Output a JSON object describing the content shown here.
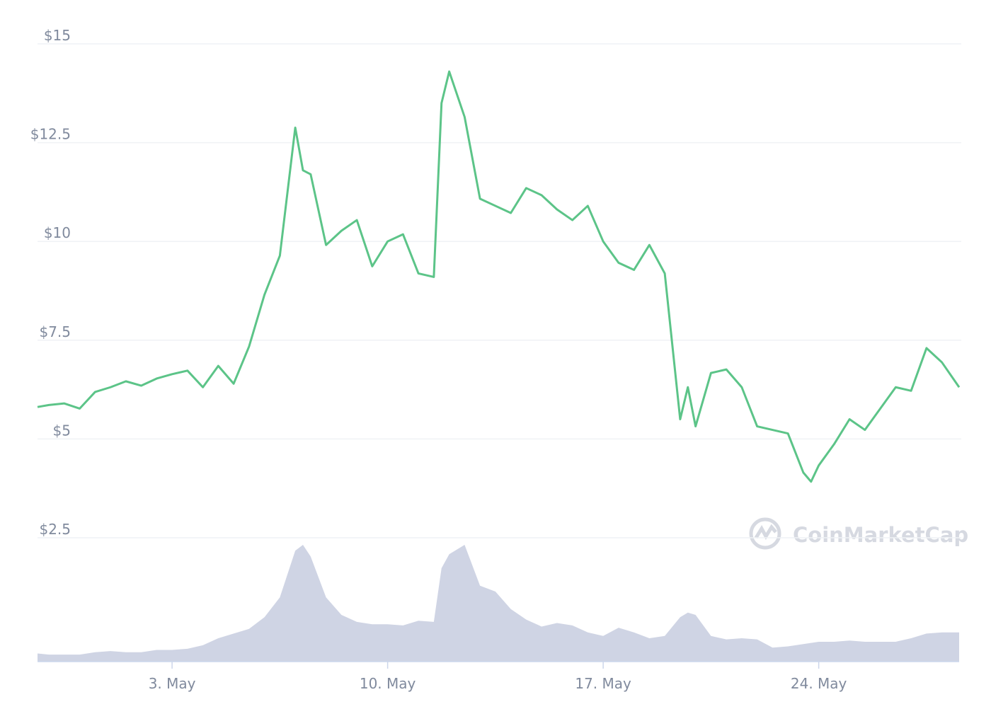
{
  "chart_data": {
    "type": "line",
    "watermark": "CoinMarketCap",
    "x": [
      -1.37,
      -1,
      -0.5,
      0,
      0.5,
      1,
      1.5,
      2,
      2.5,
      3,
      3.5,
      4,
      4.5,
      5,
      5.5,
      6,
      6.5,
      7,
      7.25,
      7.5,
      8,
      8.5,
      9,
      9.5,
      10,
      10.5,
      11,
      11.5,
      11.75,
      12,
      12.5,
      13,
      13.5,
      14,
      14.5,
      15,
      15.5,
      16,
      16.5,
      17,
      17.5,
      18,
      18.5,
      19,
      19.5,
      19.75,
      20,
      20.5,
      21,
      21.5,
      22,
      22.5,
      23,
      23.5,
      23.75,
      24,
      24.5,
      25,
      25.5,
      26,
      26.5,
      27,
      27.5,
      28,
      28.56
    ],
    "series": [
      {
        "color": "#5cc488",
        "values": [
          5.81,
          5.86,
          5.9,
          5.77,
          6.19,
          6.31,
          6.46,
          6.35,
          6.53,
          6.64,
          6.73,
          6.31,
          6.85,
          6.4,
          7.34,
          8.65,
          9.64,
          12.88,
          11.8,
          11.7,
          9.91,
          10.27,
          10.54,
          9.37,
          10.0,
          10.18,
          9.19,
          9.1,
          13.5,
          14.3,
          13.15,
          11.08,
          10.9,
          10.72,
          11.35,
          11.17,
          10.81,
          10.54,
          10.9,
          10.0,
          9.46,
          9.28,
          9.91,
          9.19,
          5.5,
          6.31,
          5.32,
          6.67,
          6.76,
          6.31,
          5.32,
          5.23,
          5.14,
          4.15,
          3.92,
          4.33,
          4.87,
          5.5,
          5.23,
          5.77,
          6.31,
          6.22,
          7.3,
          6.94,
          6.31
        ]
      },
      {
        "color": "#cfd4e4",
        "axis": "y2",
        "values": [
          7,
          6,
          6,
          6,
          8,
          9,
          8,
          8,
          10,
          10,
          11,
          14,
          20,
          24,
          28,
          38,
          55,
          95,
          100,
          90,
          55,
          40,
          34,
          32,
          32,
          31,
          35,
          34,
          80,
          92,
          100,
          65,
          60,
          45,
          36,
          30,
          33,
          31,
          25,
          22,
          29,
          25,
          20,
          22,
          38,
          42,
          40,
          22,
          19,
          20,
          19,
          12,
          13,
          15,
          16,
          17,
          17,
          18,
          17,
          17,
          17,
          20,
          24,
          25,
          25
        ]
      }
    ],
    "xlim": [
      -1.37,
      28.56
    ],
    "xticks": [
      {
        "value": 3,
        "label": "3. May"
      },
      {
        "value": 10,
        "label": "10. May"
      },
      {
        "value": 17,
        "label": "17. May"
      },
      {
        "value": 24,
        "label": "24. May"
      }
    ],
    "ylim": [
      2.5,
      15
    ],
    "yticks": [
      {
        "value": 2.5,
        "label": "$2.5"
      },
      {
        "value": 5,
        "label": "$5"
      },
      {
        "value": 7.5,
        "label": "$7.5"
      },
      {
        "value": 10,
        "label": "$10"
      },
      {
        "value": 12.5,
        "label": "$12.5"
      },
      {
        "value": 15,
        "label": "$15"
      }
    ],
    "y2lim": [
      0,
      100
    ],
    "grid": true
  }
}
